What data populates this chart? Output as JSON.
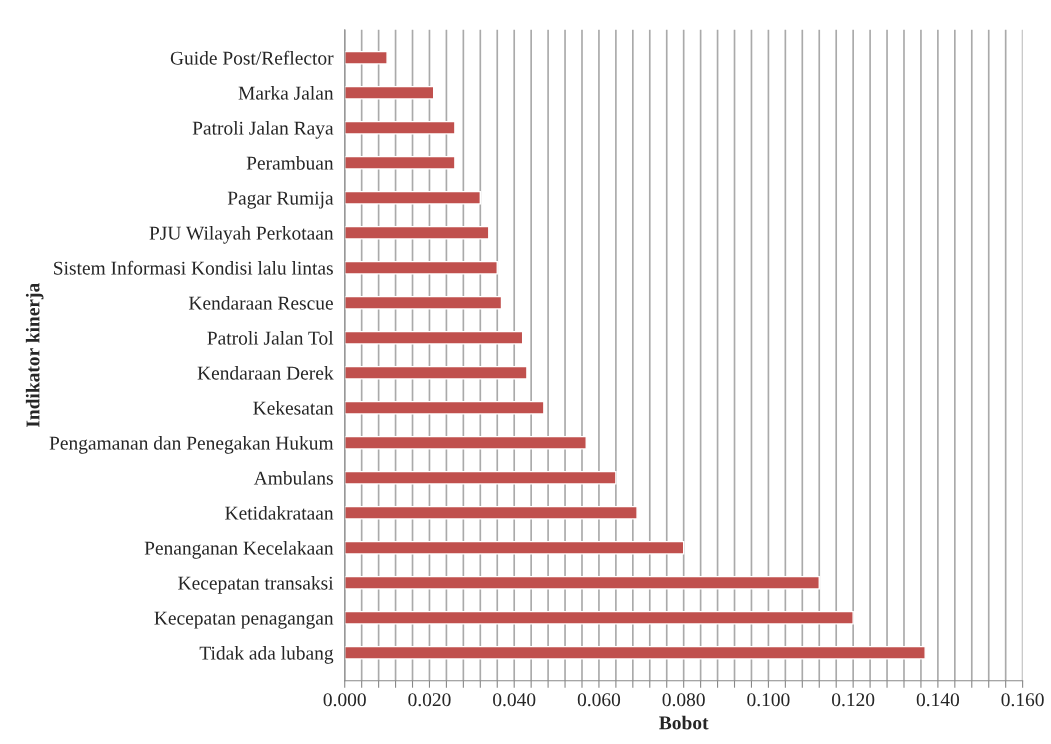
{
  "chart_data": {
    "type": "bar",
    "orientation": "horizontal",
    "xlabel": "Bobot",
    "ylabel": "Indikator kinerja",
    "categories": [
      "Guide Post/Reflector",
      "Marka Jalan",
      "Patroli Jalan Raya",
      "Perambuan",
      "Pagar Rumija",
      "PJU Wilayah Perkotaan",
      "Sistem Informasi Kondisi lalu lintas",
      "Kendaraan Rescue",
      "Patroli Jalan Tol",
      "Kendaraan Derek",
      "Kekesatan",
      "Pengamanan dan Penegakan Hukum",
      "Ambulans",
      "Ketidakrataan",
      "Penanganan Kecelakaan",
      "Kecepatan transaksi",
      "Kecepatan penagangan",
      "Tidak ada lubang"
    ],
    "values": [
      0.01,
      0.021,
      0.026,
      0.026,
      0.032,
      0.034,
      0.036,
      0.037,
      0.042,
      0.043,
      0.047,
      0.057,
      0.064,
      0.069,
      0.08,
      0.112,
      0.12,
      0.137
    ],
    "color": "#c0504d",
    "xlim": [
      0,
      0.16
    ],
    "xticks": [
      {
        "value": 0,
        "label": "0.000"
      },
      {
        "value": 0.004,
        "label": null
      },
      {
        "value": 0.008,
        "label": null
      },
      {
        "value": 0.012,
        "label": null
      },
      {
        "value": 0.016,
        "label": null
      },
      {
        "value": 0.02,
        "label": "0.020"
      },
      {
        "value": 0.024,
        "label": null
      },
      {
        "value": 0.028,
        "label": null
      },
      {
        "value": 0.032,
        "label": null
      },
      {
        "value": 0.036,
        "label": null
      },
      {
        "value": 0.04,
        "label": "0.040"
      },
      {
        "value": 0.044,
        "label": null
      },
      {
        "value": 0.048,
        "label": null
      },
      {
        "value": 0.052,
        "label": null
      },
      {
        "value": 0.056,
        "label": null
      },
      {
        "value": 0.06,
        "label": "0.060"
      },
      {
        "value": 0.064,
        "label": null
      },
      {
        "value": 0.068,
        "label": null
      },
      {
        "value": 0.072,
        "label": null
      },
      {
        "value": 0.076,
        "label": null
      },
      {
        "value": 0.08,
        "label": "0.080"
      },
      {
        "value": 0.084,
        "label": null
      },
      {
        "value": 0.088,
        "label": null
      },
      {
        "value": 0.092,
        "label": null
      },
      {
        "value": 0.096,
        "label": null
      },
      {
        "value": 0.1,
        "label": "0.100"
      },
      {
        "value": 0.104,
        "label": null
      },
      {
        "value": 0.108,
        "label": null
      },
      {
        "value": 0.112,
        "label": null
      },
      {
        "value": 0.116,
        "label": null
      },
      {
        "value": 0.12,
        "label": "0.120"
      },
      {
        "value": 0.124,
        "label": null
      },
      {
        "value": 0.128,
        "label": null
      },
      {
        "value": 0.132,
        "label": null
      },
      {
        "value": 0.136,
        "label": null
      },
      {
        "value": 0.14,
        "label": "0.140"
      },
      {
        "value": 0.144,
        "label": null
      },
      {
        "value": 0.148,
        "label": null
      },
      {
        "value": 0.152,
        "label": null
      },
      {
        "value": 0.156,
        "label": null
      },
      {
        "value": 0.16,
        "label": "0.160"
      }
    ],
    "grid": "x",
    "legend": false
  }
}
